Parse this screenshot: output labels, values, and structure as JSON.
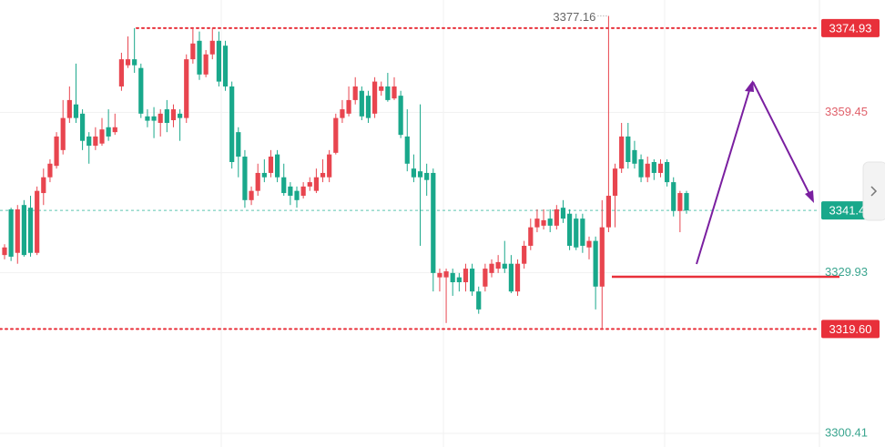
{
  "chart_data": {
    "type": "candlestick",
    "ylim": [
      3297.9,
      3380.1
    ],
    "yticks": [
      3359.45,
      3329.93,
      3300.41
    ],
    "grid": true,
    "up_color": "#e8454f",
    "down_color": "#19a88b",
    "level_color": "#e8303a",
    "levels": [
      {
        "value": 3374.93,
        "style": "dotted"
      },
      {
        "value": 3319.6,
        "label": "3319.60",
        "style": "dotted"
      },
      {
        "value": 3329.2,
        "style": "solid"
      }
    ],
    "open": [
      3333.2,
      3341.6,
      3333.6,
      3342.4,
      3341.9,
      3333.6,
      3344.6,
      3347.5,
      3349.6,
      3352.5,
      3358.4,
      3360.9,
      3359.2,
      3355.0,
      3353.3,
      3353.7,
      3356.7,
      3355.8,
      3364.2,
      3368.1,
      3369.2,
      3367.6,
      3358.7,
      3358.7,
      3357.5,
      3360.0,
      3358.0,
      3359.2,
      3358.4,
      3369.2,
      3372.6,
      3366.4,
      3370.1,
      3372.6,
      3371.7,
      3364.2,
      3355.8,
      3351.3,
      3343.3,
      3345.0,
      3348.3,
      3348.3,
      3351.7,
      3347.5,
      3345.8,
      3345.0,
      3344.1,
      3345.8,
      3345.0,
      3347.5,
      3347.5,
      3352.0,
      3358.4,
      3359.2,
      3361.7,
      3363.4,
      3362.5,
      3359.2,
      3363.4,
      3364.2,
      3362.0,
      3362.5,
      3355.0,
      3349.1,
      3348.6,
      3348.3,
      3348.3,
      3329.1,
      3329.1,
      3329.9,
      3329.1,
      3328.2,
      3330.7,
      3326.5,
      3327.4,
      3329.9,
      3330.7,
      3331.6,
      3331.6,
      3326.5,
      3331.6,
      3334.9,
      3338.3,
      3338.6,
      3339.9,
      3338.6,
      3341.9,
      3340.8,
      3339.9,
      3339.9,
      3334.6,
      3335.8,
      3327.4,
      3338.3,
      3344.1,
      3349.1,
      3355.0,
      3352.5,
      3350.8,
      3347.5,
      3350.3,
      3348.3,
      3350.3,
      3346.6,
      3341.3,
      3344.6
    ],
    "high": [
      3335.2,
      3341.9,
      3342.4,
      3343.3,
      3344.1,
      3345.8,
      3349.1,
      3350.8,
      3355.8,
      3361.7,
      3364.2,
      3368.4,
      3360.0,
      3355.8,
      3356.7,
      3358.4,
      3360.0,
      3359.2,
      3370.4,
      3373.4,
      3374.93,
      3368.4,
      3360.0,
      3360.4,
      3360.0,
      3361.7,
      3360.9,
      3360.0,
      3370.1,
      3374.93,
      3374.3,
      3370.9,
      3374.93,
      3374.3,
      3372.6,
      3365.1,
      3356.7,
      3352.5,
      3345.8,
      3350.0,
      3350.8,
      3352.5,
      3352.5,
      3350.0,
      3346.6,
      3345.8,
      3346.6,
      3347.5,
      3349.1,
      3350.8,
      3352.5,
      3359.2,
      3361.7,
      3364.2,
      3365.9,
      3364.2,
      3363.4,
      3365.9,
      3365.1,
      3366.7,
      3365.9,
      3363.4,
      3360.0,
      3351.7,
      3360.9,
      3350.0,
      3349.1,
      3330.7,
      3330.7,
      3330.7,
      3329.9,
      3331.6,
      3331.6,
      3327.4,
      3331.6,
      3332.4,
      3333.2,
      3335.8,
      3333.2,
      3332.4,
      3335.8,
      3339.9,
      3341.6,
      3341.6,
      3341.6,
      3342.4,
      3343.3,
      3341.6,
      3340.8,
      3340.8,
      3336.6,
      3336.6,
      3343.3,
      3377.16,
      3350.0,
      3357.5,
      3357.5,
      3354.2,
      3351.7,
      3351.3,
      3350.8,
      3350.8,
      3350.8,
      3347.5,
      3345.0,
      3345.0
    ],
    "low": [
      3332.4,
      3332.1,
      3331.6,
      3332.9,
      3332.9,
      3333.2,
      3342.4,
      3346.6,
      3349.1,
      3351.7,
      3357.5,
      3357.5,
      3352.5,
      3350.0,
      3352.5,
      3353.3,
      3354.2,
      3355.3,
      3363.4,
      3367.6,
      3366.7,
      3358.4,
      3356.7,
      3354.7,
      3355.0,
      3355.8,
      3356.7,
      3354.2,
      3357.5,
      3368.4,
      3365.4,
      3365.9,
      3369.2,
      3364.2,
      3363.4,
      3349.1,
      3347.5,
      3341.9,
      3342.4,
      3344.1,
      3346.6,
      3347.5,
      3346.6,
      3344.1,
      3342.4,
      3341.9,
      3343.6,
      3345.0,
      3344.6,
      3346.6,
      3346.6,
      3351.7,
      3357.5,
      3358.7,
      3360.9,
      3358.0,
      3357.5,
      3358.4,
      3362.5,
      3361.4,
      3361.7,
      3354.7,
      3348.6,
      3346.6,
      3334.9,
      3344.1,
      3326.5,
      3326.5,
      3320.7,
      3325.7,
      3326.5,
      3326.5,
      3325.7,
      3322.4,
      3326.5,
      3329.1,
      3329.9,
      3329.9,
      3326.2,
      3325.7,
      3330.7,
      3334.1,
      3337.4,
      3337.9,
      3337.4,
      3337.9,
      3339.1,
      3334.1,
      3334.1,
      3333.6,
      3332.4,
      3323.2,
      3319.6,
      3337.4,
      3338.3,
      3348.3,
      3349.1,
      3349.1,
      3346.6,
      3346.6,
      3347.0,
      3347.5,
      3345.8,
      3340.3,
      3337.4,
      3340.8
    ],
    "close": [
      3334.6,
      3332.9,
      3341.6,
      3333.2,
      3333.6,
      3345.0,
      3347.5,
      3350.0,
      3355.0,
      3358.4,
      3361.7,
      3358.4,
      3354.2,
      3353.3,
      3355.0,
      3356.3,
      3355.0,
      3356.7,
      3369.2,
      3369.2,
      3368.1,
      3359.2,
      3357.9,
      3357.9,
      3359.2,
      3357.5,
      3360.0,
      3358.4,
      3369.2,
      3372.1,
      3366.4,
      3370.1,
      3372.6,
      3365.1,
      3364.2,
      3350.3,
      3351.3,
      3343.3,
      3345.0,
      3348.3,
      3347.5,
      3351.3,
      3347.5,
      3344.6,
      3344.1,
      3343.3,
      3345.8,
      3346.6,
      3347.5,
      3348.3,
      3351.7,
      3358.4,
      3360.0,
      3361.7,
      3364.2,
      3358.7,
      3358.4,
      3365.1,
      3364.2,
      3361.7,
      3364.2,
      3355.3,
      3350.0,
      3347.5,
      3347.5,
      3347.0,
      3329.9,
      3329.9,
      3330.2,
      3328.2,
      3328.2,
      3330.7,
      3326.5,
      3323.2,
      3330.7,
      3331.6,
      3331.9,
      3330.7,
      3326.5,
      3331.6,
      3334.9,
      3338.3,
      3339.9,
      3339.6,
      3338.6,
      3341.6,
      3339.9,
      3334.9,
      3334.6,
      3334.9,
      3335.8,
      3327.4,
      3338.3,
      3344.1,
      3349.1,
      3355.0,
      3350.3,
      3350.0,
      3347.5,
      3350.0,
      3348.3,
      3350.0,
      3346.6,
      3341.3,
      3344.6,
      3341.41
    ]
  }
}
